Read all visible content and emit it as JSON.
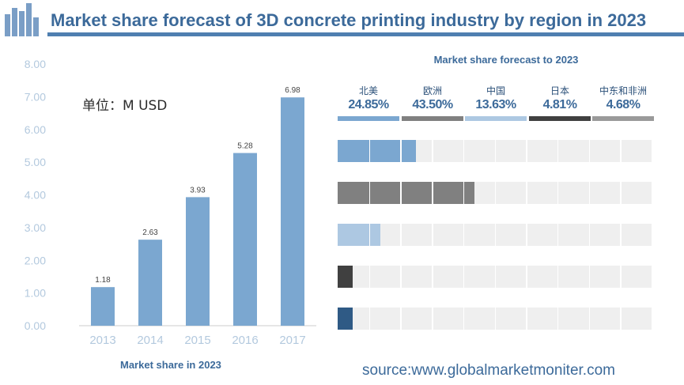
{
  "header": {
    "title": "Market share forecast of 3D concrete printing industry by region in 2023"
  },
  "chart_data": [
    {
      "type": "bar",
      "title": "",
      "xlabel": "Market share in 2023",
      "ylabel": "",
      "unit_label": "单位：M USD",
      "categories": [
        "2013",
        "2014",
        "2015",
        "2016",
        "2017"
      ],
      "values": [
        1.18,
        2.63,
        3.93,
        5.28,
        6.98
      ],
      "value_labels": [
        "1.18",
        "2.63",
        "3.93",
        "5.28",
        "6.98"
      ],
      "ylim": [
        0,
        8
      ],
      "yticks": [
        "0.00",
        "1.00",
        "2.00",
        "3.00",
        "4.00",
        "5.00",
        "6.00",
        "7.00",
        "8.00"
      ],
      "grid": false,
      "bar_color": "#7ba7d0"
    },
    {
      "type": "bar",
      "title": "Market share forecast to 2023",
      "orientation": "horizontal",
      "categories": [
        "北美",
        "欧洲",
        "中国",
        "日本",
        "中东和非洲"
      ],
      "values": [
        24.85,
        43.5,
        13.63,
        4.81,
        4.68
      ],
      "value_labels": [
        "24.85%",
        "43.50%",
        "13.63%",
        "4.81%",
        "4.68%"
      ],
      "xlim": [
        0,
        100
      ],
      "colors": [
        "#7ba7d0",
        "#808080",
        "#adc8e2",
        "#404040",
        "#2f5a85"
      ],
      "header_bar_colors": [
        "#7ba7d0",
        "#808080",
        "#adc8e2",
        "#404040",
        "#9a9a9a"
      ]
    }
  ],
  "footer": {
    "source": "source:www.globalmarketmoniter.com"
  }
}
